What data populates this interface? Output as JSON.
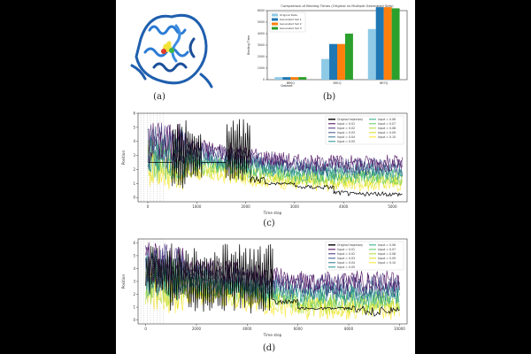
{
  "captions": {
    "a": "(a)",
    "b": "(b)",
    "c": "(c)",
    "d": "(d)"
  },
  "panel_a": {
    "icon": "protein-ribbon-structure"
  },
  "chart_data": [
    {
      "type": "bar",
      "title": "Comparison of Binding Times (Original vs Multiple Generated Sets)",
      "xlabel": "Dataset",
      "ylabel": "Binding Time",
      "ylim": [
        0,
        6000
      ],
      "categories": [
        "BR0Q",
        "BR1Q",
        "BR7Q"
      ],
      "series": [
        {
          "name": "Original Data",
          "color": "#8ecae6",
          "values": [
            220,
            1800,
            4400
          ]
        },
        {
          "name": "Generated Set 1",
          "color": "#1f77b4",
          "values": [
            220,
            3100,
            6300
          ]
        },
        {
          "name": "Generated Set 2",
          "color": "#ff7f0e",
          "values": [
            220,
            3100,
            6300
          ]
        },
        {
          "name": "Generated Set 3",
          "color": "#2ca02c",
          "values": [
            220,
            4000,
            6200
          ]
        }
      ],
      "yticks": [
        "0",
        "1000",
        "2000",
        "3000",
        "4000",
        "5000",
        "6000"
      ],
      "legend": "top-left"
    },
    {
      "type": "line",
      "xlabel": "Time step",
      "ylabel": "Position",
      "xlim": [
        -200,
        5300
      ],
      "ylim": [
        -0.3,
        6
      ],
      "xticks": [
        0,
        1000,
        2000,
        3000,
        4000,
        5000
      ],
      "yticks": [
        0,
        1,
        2,
        3,
        4,
        5,
        6
      ],
      "legend": "top-right",
      "series": [
        {
          "name": "Original trajectory",
          "color": "#000000"
        },
        {
          "name": "Input = 0.01",
          "color": "#440154"
        },
        {
          "name": "Input = 0.02",
          "color": "#472d7b"
        },
        {
          "name": "Input = 0.03",
          "color": "#3b528b"
        },
        {
          "name": "Input = 0.04",
          "color": "#2c728e"
        },
        {
          "name": "Input = 0.05",
          "color": "#21918c"
        },
        {
          "name": "Input = 0.06",
          "color": "#28ae80"
        },
        {
          "name": "Input = 0.07",
          "color": "#5ec962"
        },
        {
          "name": "Input = 0.08",
          "color": "#addc30"
        },
        {
          "name": "Input = 0.09",
          "color": "#d8e219"
        },
        {
          "name": "Input = 0.10",
          "color": "#fde725"
        }
      ],
      "original_segments": [
        {
          "x": [
            0,
            500
          ],
          "y": [
            2.5,
            2.5
          ]
        },
        {
          "x": [
            500,
            1100
          ],
          "y": [
            0.5,
            5.5
          ]
        },
        {
          "x": [
            1100,
            1600
          ],
          "y": [
            2.5,
            2.5
          ]
        },
        {
          "x": [
            1600,
            2100
          ],
          "y": [
            1.0,
            5.6
          ]
        },
        {
          "x": [
            2100,
            2400
          ],
          "y": [
            1.0,
            1.6
          ]
        },
        {
          "x": [
            2400,
            3000
          ],
          "y": [
            0.9,
            1.1
          ]
        },
        {
          "x": [
            3000,
            3800
          ],
          "y": [
            0.6,
            0.9
          ]
        },
        {
          "x": [
            3800,
            4100
          ],
          "y": [
            0.2,
            0.5
          ]
        },
        {
          "x": [
            4100,
            5200
          ],
          "y": [
            0.1,
            0.4
          ]
        }
      ],
      "input_band": {
        "x": [
          0,
          5200
        ],
        "start_y": [
          1.8,
          4.5
        ],
        "end_y": [
          0.7,
          2.8
        ]
      }
    },
    {
      "type": "line",
      "xlabel": "Time step",
      "ylabel": "Position",
      "xlim": [
        -300,
        10300
      ],
      "ylim": [
        -0.3,
        6.3
      ],
      "xticks": [
        0,
        2000,
        4000,
        6000,
        8000,
        10000
      ],
      "yticks": [
        0,
        1,
        2,
        3,
        4,
        5,
        6
      ],
      "legend": "top-right",
      "series": [
        {
          "name": "Original trajectory",
          "color": "#000000"
        },
        {
          "name": "Input = 0.01",
          "color": "#440154"
        },
        {
          "name": "Input = 0.02",
          "color": "#472d7b"
        },
        {
          "name": "Input = 0.03",
          "color": "#3b528b"
        },
        {
          "name": "Input = 0.04",
          "color": "#2c728e"
        },
        {
          "name": "Input = 0.05",
          "color": "#21918c"
        },
        {
          "name": "Input = 0.06",
          "color": "#28ae80"
        },
        {
          "name": "Input = 0.07",
          "color": "#5ec962"
        },
        {
          "name": "Input = 0.08",
          "color": "#addc30"
        },
        {
          "name": "Input = 0.09",
          "color": "#d8e219"
        },
        {
          "name": "Input = 0.10",
          "color": "#fde725"
        }
      ],
      "original_segments": [
        {
          "x": [
            0,
            900
          ],
          "y": [
            2.0,
            5.8
          ]
        },
        {
          "x": [
            900,
            5000
          ],
          "y": [
            0.5,
            6.0
          ]
        },
        {
          "x": [
            5000,
            6000
          ],
          "y": [
            1.2,
            1.6
          ]
        },
        {
          "x": [
            6000,
            8000
          ],
          "y": [
            0.8,
            1.0
          ]
        },
        {
          "x": [
            8000,
            8600
          ],
          "y": [
            0.6,
            1.1
          ]
        },
        {
          "x": [
            8600,
            10000
          ],
          "y": [
            0.3,
            1.0
          ]
        }
      ],
      "input_band": {
        "x": [
          0,
          10000
        ],
        "start_y": [
          2.0,
          5.0
        ],
        "end_y": [
          0.4,
          3.5
        ]
      }
    }
  ]
}
